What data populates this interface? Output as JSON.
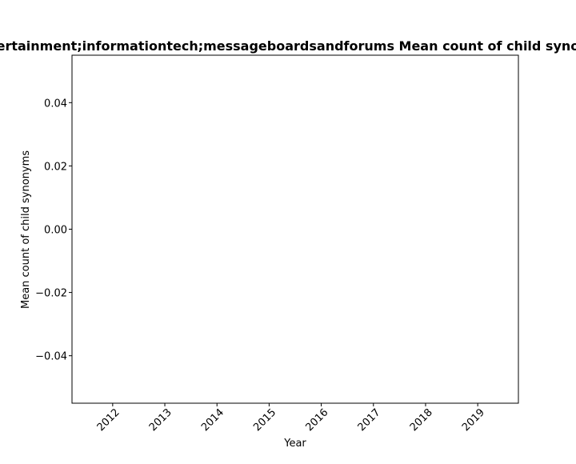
{
  "chart_data": {
    "type": "line",
    "title": "entertainment;informationtech;messageboardsandforums Mean count of child synonyms",
    "xlabel": "Year",
    "ylabel": "Mean count of child synonyms",
    "x": [
      2012,
      2013,
      2014,
      2015,
      2016,
      2017,
      2018,
      2019
    ],
    "x_tick_labels": [
      "2012",
      "2013",
      "2014",
      "2015",
      "2016",
      "2017",
      "2018",
      "2019"
    ],
    "xlim": [
      2011.22,
      2019.78
    ],
    "series": [
      {
        "values": [
          null,
          null,
          null,
          null,
          null,
          null,
          null,
          null
        ]
      }
    ],
    "yticks": [
      0.04,
      0.02,
      0.0,
      -0.02,
      -0.04
    ],
    "y_tick_labels": [
      "0.04",
      "0.02",
      "0.00",
      "−0.02",
      "−0.04"
    ],
    "ylim": [
      -0.055,
      0.055
    ],
    "grid": false,
    "legend": "none"
  }
}
